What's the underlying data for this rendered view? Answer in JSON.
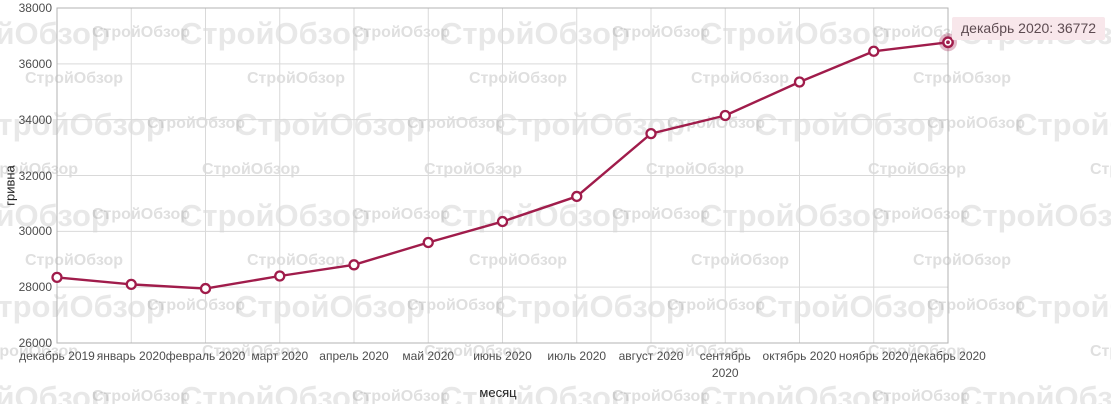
{
  "watermark": {
    "text": "СтройОбзор"
  },
  "tooltip": {
    "label": "декабрь 2020: 36772",
    "bg_color": "#f8e7eb",
    "text_color": "#5d4b51"
  },
  "chart_data": {
    "type": "line",
    "title": "",
    "xlabel": "месяц",
    "ylabel": "гривна",
    "categories": [
      "декабрь 2019",
      "январь 2020",
      "февраль 2020",
      "март 2020",
      "апрель 2020",
      "май 2020",
      "июнь 2020",
      "июль 2020",
      "август 2020",
      "сентябрь\n2020",
      "октябрь 2020",
      "ноябрь 2020",
      "декабрь 2020"
    ],
    "values": [
      28350,
      28100,
      27950,
      28400,
      28800,
      29600,
      30350,
      31250,
      33500,
      34150,
      35350,
      36450,
      36772
    ],
    "ylim": [
      26000,
      38000
    ],
    "yticks": [
      26000,
      28000,
      30000,
      32000,
      34000,
      36000,
      38000
    ],
    "grid": true,
    "legend": "none",
    "line_color": "#a01c4b",
    "marker_fill": "#ffffff",
    "highlight_halo_color": "#a01c4b",
    "grid_color": "#d9d9d9",
    "border_color": "#b3b3b3",
    "highlight_index": 12,
    "highlighted_point": {
      "category": "декабрь 2020",
      "value": 36772
    }
  }
}
